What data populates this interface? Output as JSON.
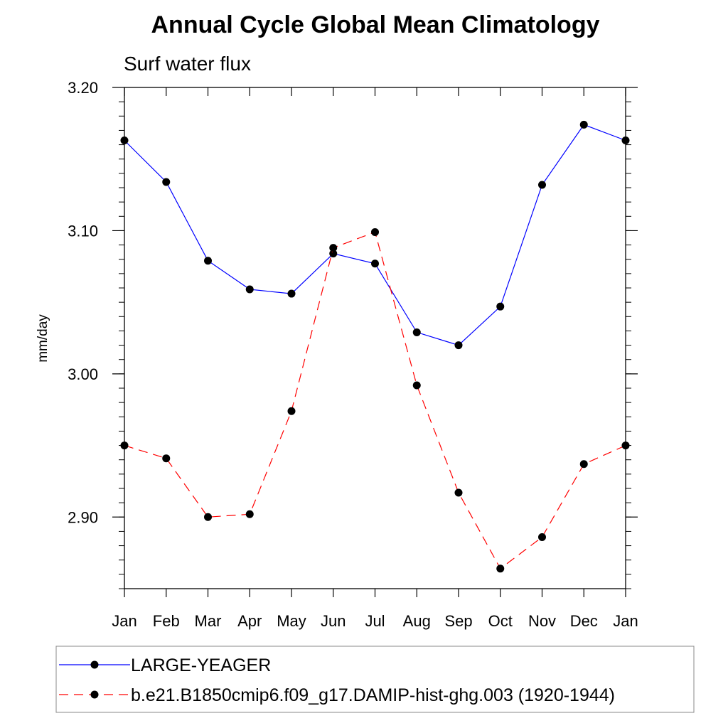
{
  "chart_data": {
    "type": "line",
    "title": "Annual Cycle Global Mean Climatology",
    "subtitle": "Surf water flux",
    "xlabel": "",
    "ylabel": "mm/day",
    "categories": [
      "Jan",
      "Feb",
      "Mar",
      "Apr",
      "May",
      "Jun",
      "Jul",
      "Aug",
      "Sep",
      "Oct",
      "Nov",
      "Dec",
      "Jan"
    ],
    "ylim": [
      2.85,
      3.2
    ],
    "yticks": [
      "2.90",
      "3.00",
      "3.10",
      "3.20"
    ],
    "grid": false,
    "legend_position": "bottom",
    "series": [
      {
        "name": "LARGE-YEAGER",
        "color": "#0000ff",
        "style": "solid",
        "marker": "circle",
        "values": [
          3.163,
          3.134,
          3.079,
          3.059,
          3.056,
          3.084,
          3.077,
          3.029,
          3.02,
          3.047,
          3.132,
          3.174,
          3.163
        ]
      },
      {
        "name": "b.e21.B1850cmip6.f09_g17.DAMIP-hist-ghg.003 (1920-1944)",
        "color": "#ff0000",
        "style": "dashed",
        "marker": "circle",
        "values": [
          2.95,
          2.941,
          2.9,
          2.902,
          2.974,
          3.088,
          3.099,
          2.992,
          2.917,
          2.864,
          2.886,
          2.937,
          2.95
        ]
      }
    ]
  }
}
